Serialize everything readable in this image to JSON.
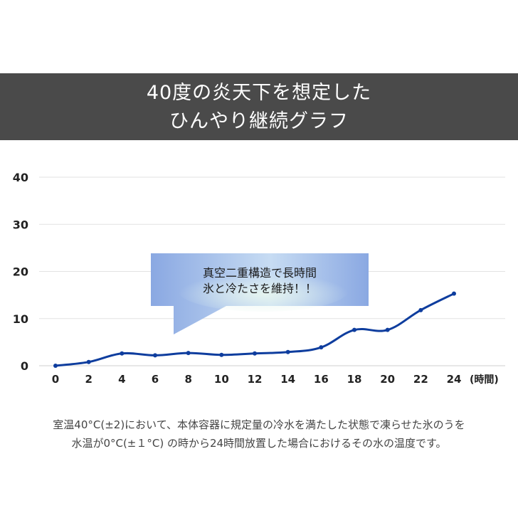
{
  "header": {
    "line1": "40度の炎天下を想定した",
    "line2": "ひんやり継続グラフ"
  },
  "chart_data": {
    "type": "line",
    "x": [
      0,
      2,
      4,
      6,
      8,
      10,
      12,
      14,
      16,
      18,
      20,
      22,
      24
    ],
    "series": [
      {
        "values": [
          0,
          0.8,
          2.6,
          2.2,
          2.7,
          2.3,
          2.6,
          2.9,
          3.9,
          7.6,
          7.6,
          11.8,
          15.3
        ]
      }
    ],
    "x_ticks": [
      "0",
      "2",
      "4",
      "6",
      "8",
      "10",
      "12",
      "14",
      "16",
      "18",
      "20",
      "22",
      "24"
    ],
    "y_ticks": [
      "0",
      "10",
      "20",
      "30",
      "40"
    ],
    "x_unit_label": "(時間)",
    "ylim": [
      0,
      40
    ],
    "xlim": [
      0,
      24
    ],
    "grid": true,
    "line_color": "#0e3d9e",
    "callout": {
      "line1": "真空二重構造で長時間",
      "line2": "氷と冷たさを維持！！"
    }
  },
  "footnote": {
    "line1": "室温40°C(±2)において、本体容器に規定量の冷水を満たした状態で凍らせた氷のうを",
    "line2": "水温が0°C(±１°C) の時から24時間放置した場合におけるその水の温度です。"
  }
}
